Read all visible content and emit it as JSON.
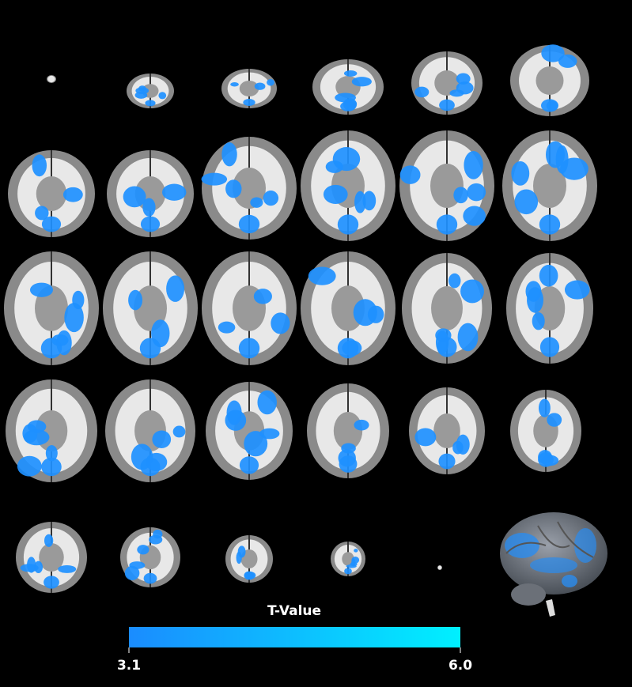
{
  "colorbar": {
    "title": "T-Value",
    "ticks": [
      3.1,
      {
        "value": 6,
        "label": "6.0"
      }
    ],
    "colors": [
      "#1a8cff",
      "#00f0ff"
    ]
  }
}
